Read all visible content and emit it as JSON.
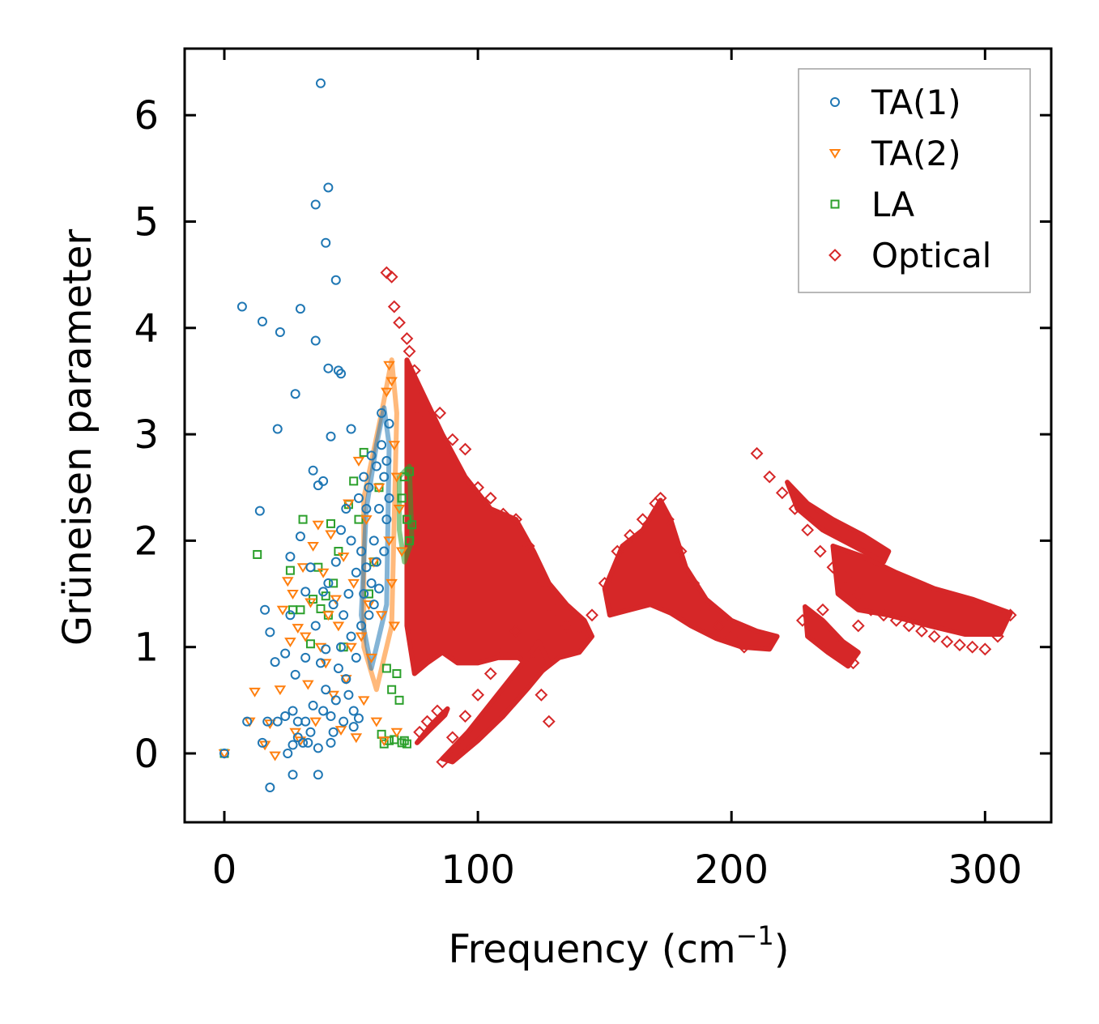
{
  "chart_data": {
    "type": "scatter",
    "title": "",
    "xlabel": "Frequency (cm",
    "xlabel_sup": "−1",
    "xlabel_close": ")",
    "ylabel": "Grüneisen parameter",
    "xlim": [
      -15,
      325
    ],
    "ylim": [
      -0.65,
      6.62
    ],
    "xticks": [
      0,
      100,
      200,
      300
    ],
    "xtick_labels": [
      "0",
      "100",
      "200",
      "300"
    ],
    "yticks": [
      0,
      1,
      2,
      3,
      4,
      5,
      6
    ],
    "ytick_labels": [
      "0",
      "1",
      "2",
      "3",
      "4",
      "5",
      "6"
    ],
    "grid": false,
    "legend_position": "top-right",
    "series": [
      {
        "name": "TA(1)",
        "marker": "circle",
        "color": "#1f77b4",
        "points": [
          [
            0,
            0
          ],
          [
            7,
            4.2
          ],
          [
            9,
            0.3
          ],
          [
            14,
            2.28
          ],
          [
            15,
            0.1
          ],
          [
            15,
            4.06
          ],
          [
            16,
            1.35
          ],
          [
            17,
            0.3
          ],
          [
            18,
            1.14
          ],
          [
            18,
            -0.32
          ],
          [
            20,
            0.86
          ],
          [
            21,
            0.3
          ],
          [
            21,
            3.05
          ],
          [
            22,
            3.96
          ],
          [
            24,
            0.35
          ],
          [
            24,
            0.94
          ],
          [
            25,
            0
          ],
          [
            26,
            1.3
          ],
          [
            26,
            1.85
          ],
          [
            27,
            0.4
          ],
          [
            27,
            0.08
          ],
          [
            27,
            -0.2
          ],
          [
            28,
            0.74
          ],
          [
            28,
            3.38
          ],
          [
            29,
            0.3
          ],
          [
            29,
            0.15
          ],
          [
            30,
            2.04
          ],
          [
            30,
            4.18
          ],
          [
            31,
            0.1
          ],
          [
            32,
            1.52
          ],
          [
            32,
            0.3
          ],
          [
            32,
            0.9
          ],
          [
            33,
            0.1
          ],
          [
            34,
            1.75
          ],
          [
            34,
            0.2
          ],
          [
            35,
            0.45
          ],
          [
            35,
            2.66
          ],
          [
            36,
            3.88
          ],
          [
            36,
            5.16
          ],
          [
            36,
            1.2
          ],
          [
            37,
            0.05
          ],
          [
            37,
            -0.2
          ],
          [
            37,
            2.52
          ],
          [
            38,
            0.85
          ],
          [
            38,
            6.3
          ],
          [
            39,
            1.52
          ],
          [
            39,
            0.4
          ],
          [
            39,
            2.56
          ],
          [
            40,
            4.8
          ],
          [
            40,
            0.98
          ],
          [
            40,
            0.6
          ],
          [
            41,
            3.62
          ],
          [
            41,
            5.32
          ],
          [
            41,
            1.6
          ],
          [
            42,
            2.98
          ],
          [
            42,
            0.35
          ],
          [
            42,
            0.1
          ],
          [
            43,
            1.4
          ],
          [
            43,
            0.2
          ],
          [
            44,
            4.45
          ],
          [
            44,
            1.8
          ],
          [
            44,
            0.5
          ],
          [
            45,
            3.6
          ],
          [
            45,
            0.8
          ],
          [
            46,
            3.57
          ],
          [
            46,
            2.1
          ],
          [
            46,
            1.0
          ],
          [
            47,
            0.3
          ],
          [
            47,
            1.3
          ],
          [
            48,
            2.3
          ],
          [
            48,
            0.7
          ],
          [
            49,
            1.5
          ],
          [
            49,
            0.55
          ],
          [
            50,
            3.05
          ],
          [
            50,
            2.0
          ],
          [
            50,
            1.1
          ],
          [
            51,
            0.4
          ],
          [
            51,
            0.25
          ],
          [
            52,
            1.7
          ],
          [
            52,
            0.9
          ],
          [
            53,
            0.33
          ],
          [
            53,
            2.4
          ],
          [
            54,
            1.2
          ],
          [
            54,
            1.9
          ],
          [
            55,
            2.6
          ],
          [
            55,
            1.5
          ],
          [
            56,
            2.3
          ],
          [
            56,
            1.75
          ],
          [
            57,
            1.3
          ],
          [
            57,
            2.5
          ],
          [
            58,
            2.8
          ],
          [
            58,
            1.6
          ],
          [
            59,
            2.0
          ],
          [
            59,
            1.4
          ],
          [
            60,
            2.7
          ],
          [
            60,
            1.8
          ],
          [
            61,
            2.3
          ],
          [
            61,
            1.55
          ],
          [
            62,
            3.2
          ],
          [
            62,
            2.9
          ],
          [
            63,
            2.6
          ],
          [
            63,
            1.9
          ],
          [
            64,
            2.75
          ],
          [
            64,
            2.2
          ],
          [
            65,
            3.1
          ],
          [
            65,
            2.4
          ]
        ]
      },
      {
        "name": "TA(2)",
        "marker": "triangle-down",
        "color": "#ff7f0e",
        "points": [
          [
            0,
            0
          ],
          [
            10,
            0.3
          ],
          [
            12,
            0.58
          ],
          [
            16,
            0.08
          ],
          [
            18,
            0.28
          ],
          [
            20,
            -0.02
          ],
          [
            22,
            0.6
          ],
          [
            23,
            1.35
          ],
          [
            25,
            1.62
          ],
          [
            26,
            1.05
          ],
          [
            27,
            1.5
          ],
          [
            28,
            0.2
          ],
          [
            29,
            1.18
          ],
          [
            30,
            0.12
          ],
          [
            31,
            1.75
          ],
          [
            32,
            1.1
          ],
          [
            33,
            0.65
          ],
          [
            34,
            1.42
          ],
          [
            35,
            1.95
          ],
          [
            36,
            0.3
          ],
          [
            37,
            2.15
          ],
          [
            38,
            1.0
          ],
          [
            39,
            1.7
          ],
          [
            40,
            0.85
          ],
          [
            41,
            1.3
          ],
          [
            42,
            2.06
          ],
          [
            43,
            0.55
          ],
          [
            44,
            1.45
          ],
          [
            45,
            1.2
          ],
          [
            46,
            0.22
          ],
          [
            47,
            1.85
          ],
          [
            48,
            0.7
          ],
          [
            49,
            2.35
          ],
          [
            50,
            1.0
          ],
          [
            51,
            1.6
          ],
          [
            52,
            0.15
          ],
          [
            53,
            2.75
          ],
          [
            54,
            1.1
          ],
          [
            55,
            0.5
          ],
          [
            56,
            2.2
          ],
          [
            57,
            1.4
          ],
          [
            58,
            0.9
          ],
          [
            59,
            1.8
          ],
          [
            60,
            0.3
          ],
          [
            61,
            2.5
          ],
          [
            62,
            1.3
          ],
          [
            63,
            0.12
          ],
          [
            64,
            3.4
          ],
          [
            65,
            3.65
          ],
          [
            65,
            2.0
          ],
          [
            66,
            3.5
          ],
          [
            66,
            1.6
          ],
          [
            67,
            2.9
          ],
          [
            67,
            1.2
          ],
          [
            68,
            2.6
          ],
          [
            68,
            0.2
          ],
          [
            69,
            2.3
          ],
          [
            70,
            1.9
          ]
        ]
      },
      {
        "name": "LA",
        "marker": "square",
        "color": "#2ca02c",
        "points": [
          [
            0,
            0
          ],
          [
            13,
            1.87
          ],
          [
            26,
            1.72
          ],
          [
            27,
            1.35
          ],
          [
            30,
            1.35
          ],
          [
            31,
            2.2
          ],
          [
            34,
            1.03
          ],
          [
            35,
            1.45
          ],
          [
            37,
            1.75
          ],
          [
            38,
            1.36
          ],
          [
            40,
            1.48
          ],
          [
            41,
            1.3
          ],
          [
            42,
            2.16
          ],
          [
            43,
            1.6
          ],
          [
            45,
            1.9
          ],
          [
            47,
            1.0
          ],
          [
            49,
            2.34
          ],
          [
            51,
            2.56
          ],
          [
            53,
            2.2
          ],
          [
            55,
            2.83
          ],
          [
            57,
            1.5
          ],
          [
            59,
            1.8
          ],
          [
            61,
            2.5
          ],
          [
            62,
            0.18
          ],
          [
            63,
            0.09
          ],
          [
            64,
            0.8
          ],
          [
            65,
            0.12
          ],
          [
            66,
            0.6
          ],
          [
            67,
            0.13
          ],
          [
            68,
            0.75
          ],
          [
            69,
            0.5
          ],
          [
            70,
            2.4
          ],
          [
            70,
            0.1
          ],
          [
            71,
            2.6
          ],
          [
            71,
            0.12
          ],
          [
            72,
            2.2
          ],
          [
            72,
            0.09
          ],
          [
            73,
            2.65
          ],
          [
            73,
            2.0
          ],
          [
            74,
            2.15
          ]
        ]
      },
      {
        "name": "Optical",
        "marker": "diamond",
        "color": "#d62728",
        "points": [
          [
            64,
            4.52
          ],
          [
            66,
            4.48
          ],
          [
            67,
            4.2
          ],
          [
            69,
            4.05
          ],
          [
            72,
            3.9
          ],
          [
            73,
            3.78
          ],
          [
            75,
            3.6
          ],
          [
            78,
            3.2
          ],
          [
            83,
            3.05
          ],
          [
            85,
            3.2
          ],
          [
            90,
            2.95
          ],
          [
            95,
            2.86
          ],
          [
            100,
            2.5
          ],
          [
            105,
            2.4
          ],
          [
            110,
            2.25
          ],
          [
            115,
            2.2
          ],
          [
            120,
            1.95
          ],
          [
            125,
            1.6
          ],
          [
            130,
            1.35
          ],
          [
            135,
            1.2
          ],
          [
            140,
            1.1
          ],
          [
            145,
            1.3
          ],
          [
            150,
            1.6
          ],
          [
            155,
            1.9
          ],
          [
            160,
            2.05
          ],
          [
            165,
            2.2
          ],
          [
            170,
            2.35
          ],
          [
            172,
            2.4
          ],
          [
            175,
            2.2
          ],
          [
            180,
            1.9
          ],
          [
            185,
            1.6
          ],
          [
            190,
            1.35
          ],
          [
            195,
            1.2
          ],
          [
            200,
            1.1
          ],
          [
            205,
            1.0
          ],
          [
            210,
            2.82
          ],
          [
            215,
            2.6
          ],
          [
            220,
            2.45
          ],
          [
            225,
            2.3
          ],
          [
            230,
            2.1
          ],
          [
            235,
            1.9
          ],
          [
            240,
            1.75
          ],
          [
            245,
            1.65
          ],
          [
            250,
            1.5
          ],
          [
            255,
            1.35
          ],
          [
            260,
            1.3
          ],
          [
            265,
            1.25
          ],
          [
            270,
            1.2
          ],
          [
            275,
            1.15
          ],
          [
            280,
            1.1
          ],
          [
            285,
            1.05
          ],
          [
            290,
            1.02
          ],
          [
            295,
            1.0
          ],
          [
            300,
            0.98
          ],
          [
            305,
            1.1
          ],
          [
            310,
            1.3
          ],
          [
            77,
            0.2
          ],
          [
            80,
            0.3
          ],
          [
            84,
            0.4
          ],
          [
            86,
            -0.08
          ],
          [
            90,
            0.15
          ],
          [
            95,
            0.35
          ],
          [
            100,
            0.55
          ],
          [
            105,
            0.75
          ],
          [
            110,
            0.95
          ],
          [
            115,
            1.15
          ],
          [
            120,
            0.9
          ],
          [
            125,
            0.55
          ],
          [
            128,
            0.3
          ],
          [
            240,
            1.05
          ],
          [
            245,
            0.9
          ],
          [
            248,
            0.85
          ],
          [
            250,
            1.2
          ],
          [
            236,
            1.35
          ],
          [
            228,
            1.25
          ]
        ]
      }
    ]
  }
}
